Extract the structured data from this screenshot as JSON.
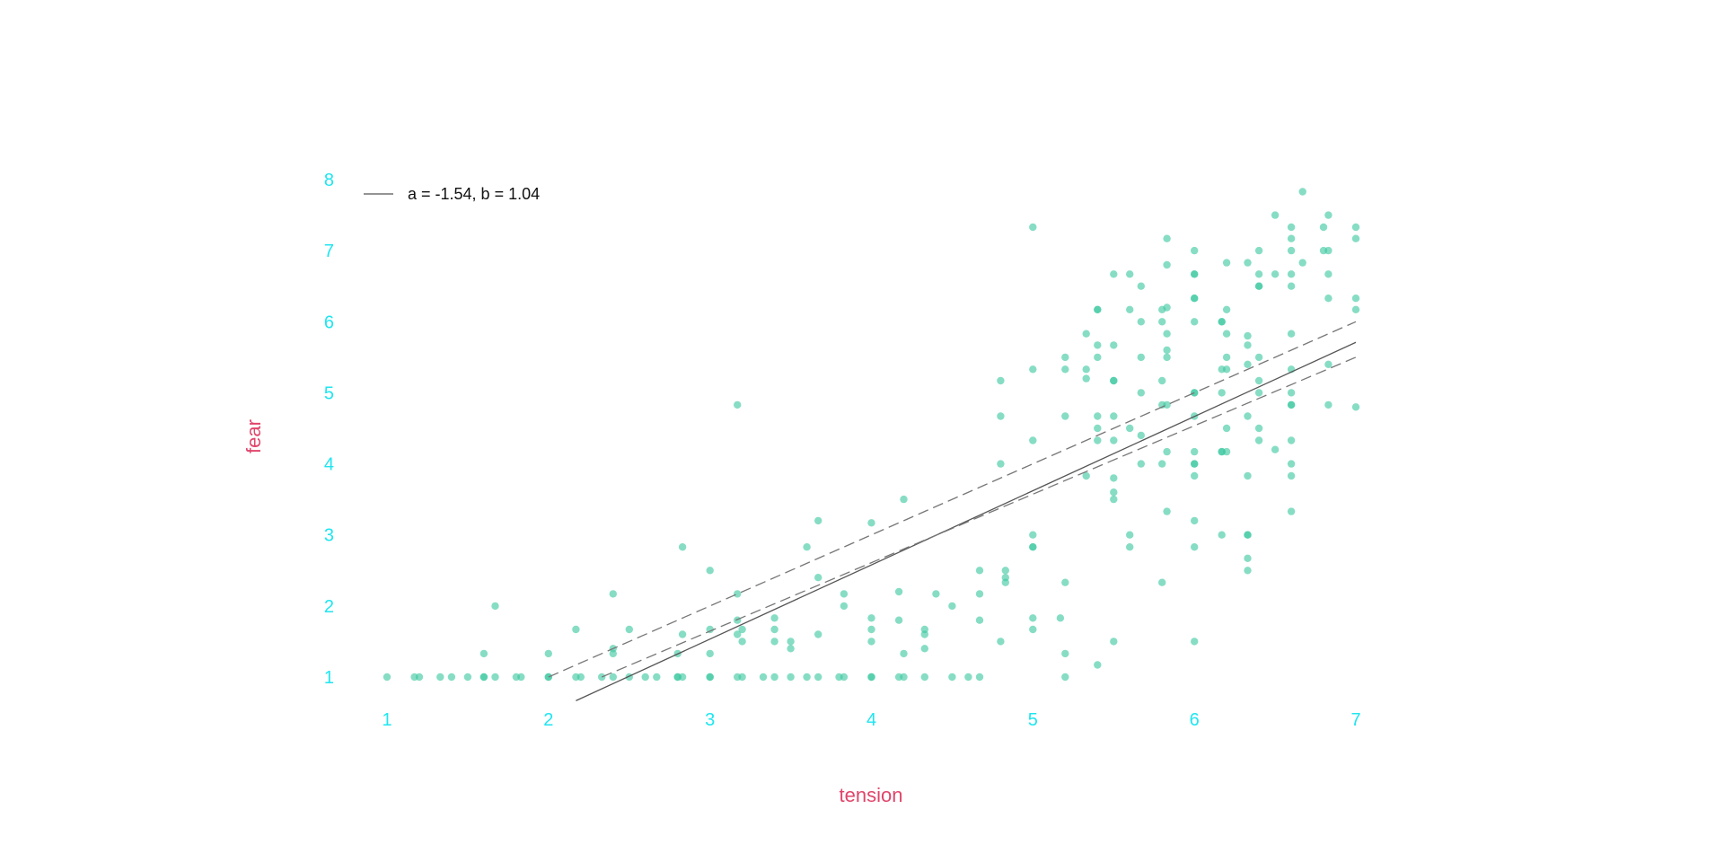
{
  "chart_data": {
    "type": "scatter",
    "title": "",
    "xlabel": "tension",
    "ylabel": "fear",
    "xlim": [
      1,
      7
    ],
    "ylim": [
      1,
      8
    ],
    "x_ticks": [
      "1",
      "2",
      "3",
      "4",
      "5",
      "6",
      "7"
    ],
    "y_ticks": [
      "1",
      "2",
      "3",
      "4",
      "5",
      "6",
      "7",
      "8"
    ],
    "grid": false,
    "legend": {
      "position": "top-left",
      "label": "a = -1.54, b = 1.04"
    },
    "colors": {
      "points": "#3cc8a0",
      "tick_labels": "#1ee6f0",
      "axis_titles": "#e0456a",
      "fit_line": "#555555",
      "ci_lines": "#777777"
    },
    "fit": {
      "intercept": -1.54,
      "slope": 1.04,
      "x_range": [
        2.17,
        7
      ],
      "ci_lower": [
        [
          2.33,
          1.0
        ],
        [
          7,
          5.5
        ]
      ],
      "ci_upper": [
        [
          2.0,
          1.0
        ],
        [
          7,
          6.0
        ]
      ]
    },
    "points": [
      [
        1,
        1
      ],
      [
        1.17,
        1
      ],
      [
        1.2,
        1
      ],
      [
        1.33,
        1
      ],
      [
        1.4,
        1
      ],
      [
        1.5,
        1
      ],
      [
        1.6,
        1
      ],
      [
        1.6,
        1
      ],
      [
        1.6,
        1.33
      ],
      [
        1.67,
        1
      ],
      [
        1.67,
        2
      ],
      [
        1.8,
        1
      ],
      [
        1.83,
        1
      ],
      [
        2,
        1
      ],
      [
        2,
        1
      ],
      [
        2,
        1.33
      ],
      [
        2.17,
        1
      ],
      [
        2.17,
        1.67
      ],
      [
        2.2,
        1
      ],
      [
        2.33,
        1
      ],
      [
        2.4,
        1
      ],
      [
        2.4,
        1.33
      ],
      [
        2.4,
        1.4
      ],
      [
        2.4,
        2.17
      ],
      [
        2.5,
        1
      ],
      [
        2.5,
        1.67
      ],
      [
        2.6,
        1
      ],
      [
        2.67,
        1
      ],
      [
        2.8,
        1
      ],
      [
        2.8,
        1
      ],
      [
        2.8,
        1.33
      ],
      [
        2.83,
        1
      ],
      [
        2.83,
        1.6
      ],
      [
        2.83,
        2.83
      ],
      [
        3,
        1
      ],
      [
        3,
        1
      ],
      [
        3,
        1.33
      ],
      [
        3,
        1.67
      ],
      [
        3,
        2.5
      ],
      [
        3.17,
        1
      ],
      [
        3.17,
        1.6
      ],
      [
        3.17,
        1.8
      ],
      [
        3.17,
        2.17
      ],
      [
        3.17,
        4.83
      ],
      [
        3.2,
        1
      ],
      [
        3.2,
        1.5
      ],
      [
        3.2,
        1.67
      ],
      [
        3.33,
        1
      ],
      [
        3.4,
        1
      ],
      [
        3.4,
        1.5
      ],
      [
        3.4,
        1.67
      ],
      [
        3.4,
        1.83
      ],
      [
        3.5,
        1
      ],
      [
        3.5,
        1.4
      ],
      [
        3.5,
        1.5
      ],
      [
        3.6,
        1
      ],
      [
        3.6,
        2.83
      ],
      [
        3.67,
        1
      ],
      [
        3.67,
        1.6
      ],
      [
        3.67,
        2.4
      ],
      [
        3.67,
        3.2
      ],
      [
        3.8,
        1
      ],
      [
        3.83,
        1
      ],
      [
        3.83,
        2
      ],
      [
        3.83,
        2.17
      ],
      [
        4,
        1
      ],
      [
        4,
        1
      ],
      [
        4,
        1.5
      ],
      [
        4,
        1.67
      ],
      [
        4,
        1.83
      ],
      [
        4,
        3.17
      ],
      [
        4.17,
        1
      ],
      [
        4.17,
        1.8
      ],
      [
        4.17,
        2.2
      ],
      [
        4.2,
        1
      ],
      [
        4.2,
        1.33
      ],
      [
        4.2,
        3.5
      ],
      [
        4.33,
        1
      ],
      [
        4.33,
        1.4
      ],
      [
        4.33,
        1.6
      ],
      [
        4.33,
        1.67
      ],
      [
        4.4,
        2.17
      ],
      [
        4.5,
        1
      ],
      [
        4.5,
        2
      ],
      [
        4.6,
        1
      ],
      [
        4.67,
        1
      ],
      [
        4.67,
        1.8
      ],
      [
        4.67,
        2.17
      ],
      [
        4.67,
        2.5
      ],
      [
        4.8,
        1.5
      ],
      [
        4.8,
        4
      ],
      [
        4.8,
        4.67
      ],
      [
        4.8,
        5.17
      ],
      [
        4.83,
        2.33
      ],
      [
        4.83,
        2.4
      ],
      [
        4.83,
        2.5
      ],
      [
        5,
        1.67
      ],
      [
        5,
        1.83
      ],
      [
        5,
        2.83
      ],
      [
        5,
        2.83
      ],
      [
        5,
        3
      ],
      [
        5,
        4.33
      ],
      [
        5,
        5.33
      ],
      [
        5,
        7.33
      ],
      [
        5.17,
        1.83
      ],
      [
        5.2,
        1
      ],
      [
        5.2,
        1.33
      ],
      [
        5.2,
        2.33
      ],
      [
        5.2,
        4.67
      ],
      [
        5.2,
        5.33
      ],
      [
        5.2,
        5.5
      ],
      [
        5.33,
        3.83
      ],
      [
        5.33,
        5.2
      ],
      [
        5.33,
        5.33
      ],
      [
        5.33,
        5.83
      ],
      [
        5.4,
        1.17
      ],
      [
        5.4,
        4.33
      ],
      [
        5.4,
        4.5
      ],
      [
        5.4,
        4.67
      ],
      [
        5.4,
        5.5
      ],
      [
        5.4,
        5.67
      ],
      [
        5.4,
        6.17
      ],
      [
        5.4,
        6.17
      ],
      [
        5.5,
        1.5
      ],
      [
        5.5,
        3.5
      ],
      [
        5.5,
        3.6
      ],
      [
        5.5,
        3.8
      ],
      [
        5.5,
        4.33
      ],
      [
        5.5,
        4.67
      ],
      [
        5.5,
        5.17
      ],
      [
        5.5,
        5.17
      ],
      [
        5.5,
        5.67
      ],
      [
        5.5,
        6.67
      ],
      [
        5.6,
        2.83
      ],
      [
        5.6,
        3
      ],
      [
        5.6,
        4.5
      ],
      [
        5.6,
        6.17
      ],
      [
        5.6,
        6.67
      ],
      [
        5.67,
        4
      ],
      [
        5.67,
        4.4
      ],
      [
        5.67,
        5
      ],
      [
        5.67,
        5.5
      ],
      [
        5.67,
        6
      ],
      [
        5.67,
        6.5
      ],
      [
        5.8,
        2.33
      ],
      [
        5.8,
        4
      ],
      [
        5.8,
        4.83
      ],
      [
        5.8,
        5.17
      ],
      [
        5.8,
        6
      ],
      [
        5.8,
        6.17
      ],
      [
        5.83,
        3.33
      ],
      [
        5.83,
        4.17
      ],
      [
        5.83,
        4.83
      ],
      [
        5.83,
        5.5
      ],
      [
        5.83,
        5.6
      ],
      [
        5.83,
        5.83
      ],
      [
        5.83,
        6.2
      ],
      [
        5.83,
        6.8
      ],
      [
        5.83,
        7.17
      ],
      [
        6,
        1.5
      ],
      [
        6,
        2.83
      ],
      [
        6,
        3.2
      ],
      [
        6,
        3.83
      ],
      [
        6,
        4
      ],
      [
        6,
        4
      ],
      [
        6,
        4.17
      ],
      [
        6,
        4.67
      ],
      [
        6,
        5
      ],
      [
        6,
        5
      ],
      [
        6,
        6
      ],
      [
        6,
        6.33
      ],
      [
        6,
        6.33
      ],
      [
        6,
        6.67
      ],
      [
        6,
        6.67
      ],
      [
        6,
        7
      ],
      [
        6.17,
        3
      ],
      [
        6.17,
        4.17
      ],
      [
        6.17,
        4.17
      ],
      [
        6.17,
        5
      ],
      [
        6.17,
        5.33
      ],
      [
        6.17,
        6
      ],
      [
        6.17,
        6
      ],
      [
        6.2,
        4.17
      ],
      [
        6.2,
        4.5
      ],
      [
        6.2,
        5.33
      ],
      [
        6.2,
        5.5
      ],
      [
        6.2,
        5.83
      ],
      [
        6.2,
        6.17
      ],
      [
        6.2,
        6.83
      ],
      [
        6.33,
        2.5
      ],
      [
        6.33,
        2.67
      ],
      [
        6.33,
        3
      ],
      [
        6.33,
        3
      ],
      [
        6.33,
        3.83
      ],
      [
        6.33,
        4.67
      ],
      [
        6.33,
        5.4
      ],
      [
        6.33,
        5.67
      ],
      [
        6.33,
        5.8
      ],
      [
        6.33,
        6.83
      ],
      [
        6.4,
        4.33
      ],
      [
        6.4,
        4.5
      ],
      [
        6.4,
        5
      ],
      [
        6.4,
        5.17
      ],
      [
        6.4,
        5.5
      ],
      [
        6.4,
        6.5
      ],
      [
        6.4,
        6.5
      ],
      [
        6.4,
        6.67
      ],
      [
        6.4,
        7
      ],
      [
        6.5,
        4.2
      ],
      [
        6.5,
        6.67
      ],
      [
        6.5,
        7.5
      ],
      [
        6.6,
        3.33
      ],
      [
        6.6,
        3.83
      ],
      [
        6.6,
        4
      ],
      [
        6.6,
        4.33
      ],
      [
        6.6,
        4.83
      ],
      [
        6.6,
        4.83
      ],
      [
        6.6,
        5
      ],
      [
        6.6,
        5.33
      ],
      [
        6.6,
        5.83
      ],
      [
        6.6,
        6.5
      ],
      [
        6.6,
        6.67
      ],
      [
        6.6,
        7
      ],
      [
        6.6,
        7.17
      ],
      [
        6.6,
        7.33
      ],
      [
        6.67,
        6.83
      ],
      [
        6.67,
        7.83
      ],
      [
        6.8,
        7
      ],
      [
        6.8,
        7.33
      ],
      [
        6.83,
        4.83
      ],
      [
        6.83,
        5.4
      ],
      [
        6.83,
        6.33
      ],
      [
        6.83,
        6.67
      ],
      [
        6.83,
        7
      ],
      [
        6.83,
        7.5
      ],
      [
        7,
        4.8
      ],
      [
        7,
        6.17
      ],
      [
        7,
        6.33
      ],
      [
        7,
        7.17
      ],
      [
        7,
        7.33
      ]
    ]
  }
}
